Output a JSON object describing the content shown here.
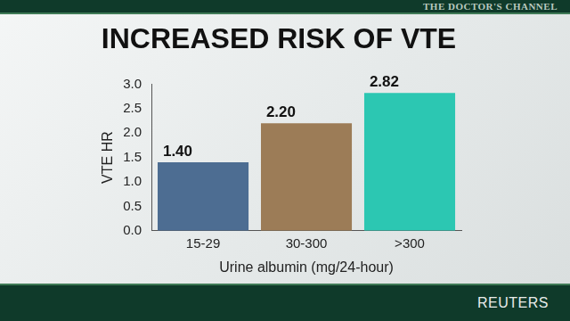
{
  "chart_data": {
    "type": "bar",
    "title": "INCREASED RISK OF VTE",
    "x_label": "Urine albumin (mg/24-hour)",
    "y_label": "VTE HR",
    "categories": [
      "15-29",
      "30-300",
      ">300"
    ],
    "values": [
      1.4,
      2.2,
      2.82
    ],
    "value_labels": [
      "1.40",
      "2.20",
      "2.82"
    ],
    "colors": [
      "#4d6d92",
      "#9c7c57",
      "#2cc7b2"
    ],
    "ylim": [
      0,
      3
    ],
    "yticks": [
      {
        "value": 0,
        "label": "0.0"
      },
      {
        "value": 0.5,
        "label": "0.5"
      },
      {
        "value": 1,
        "label": "1.0"
      },
      {
        "value": 1.5,
        "label": "1.5"
      },
      {
        "value": 2,
        "label": "2.0"
      },
      {
        "value": 2.5,
        "label": "2.5"
      },
      {
        "value": 3,
        "label": "3.0"
      }
    ],
    "grid": false,
    "data_labels": true,
    "annotations": [
      "THE DOCTOR'S CHANNEL",
      "REUTERS"
    ]
  }
}
